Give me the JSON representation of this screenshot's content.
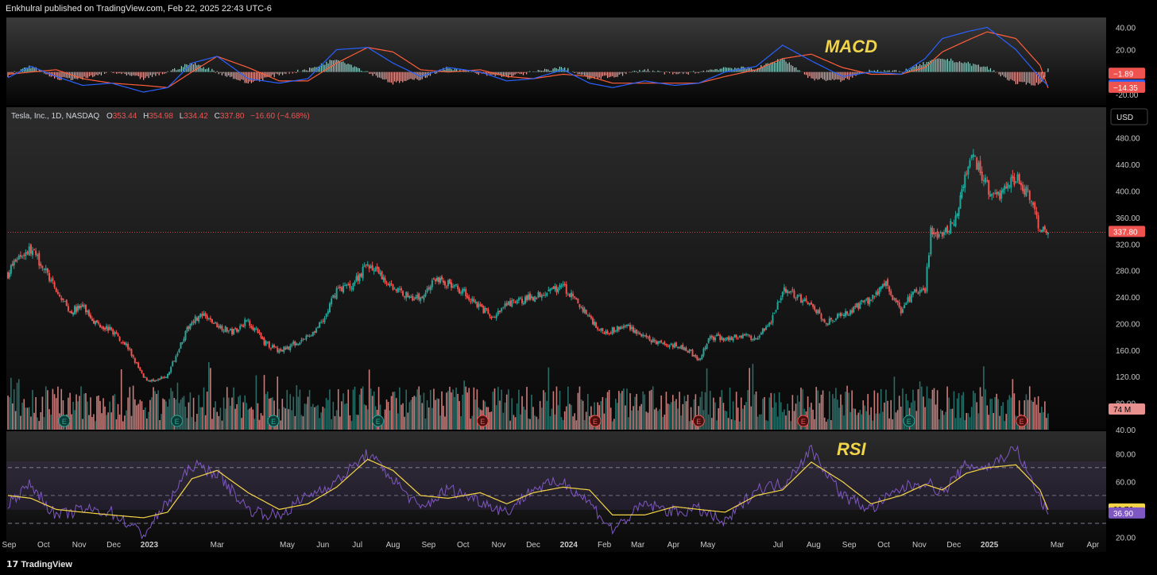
{
  "header": {
    "published": "Enkhulral published on TradingView.com, Feb 22, 2025 22:43 UTC-6"
  },
  "footer": {
    "brand_mark": "17",
    "brand_text": "TradingView"
  },
  "ohlc": {
    "symbol": "Tesla, Inc., 1D, NASDAQ",
    "o_label": "O",
    "o": "353.44",
    "h_label": "H",
    "h": "354.98",
    "l_label": "L",
    "l": "334.42",
    "c_label": "C",
    "c": "337.80",
    "change": "−16.60 (−4.68%)"
  },
  "currency": "USD",
  "macd_title": "MACD",
  "rsi_title": "RSI",
  "earnings_marker": "E",
  "colors": {
    "up": "#26a69a",
    "down": "#ef5350",
    "macd": "#2962ff",
    "signal": "#ff5e3a",
    "rsi": "#7e57c2",
    "rsi_ma": "#f5d547",
    "annotation": "#f0d54a"
  },
  "chart_data": [
    {
      "type": "candlestick",
      "name": "TSLA price",
      "x_axis": [
        "Sep",
        "Oct",
        "Nov",
        "Dec",
        "2023",
        "Mar",
        "May",
        "Jun",
        "Jul",
        "Aug",
        "Sep",
        "Oct",
        "Nov",
        "Dec",
        "2024",
        "Feb",
        "Mar",
        "Apr",
        "May",
        "Jul",
        "Aug",
        "Sep",
        "Oct",
        "Nov",
        "Dec",
        "2025",
        "Mar",
        "Apr"
      ],
      "y_ticks": [
        40,
        80,
        120,
        160,
        200,
        240,
        280,
        320,
        360,
        400,
        440,
        480
      ],
      "ylim": [
        40,
        500
      ],
      "last_price": 337.8,
      "last_price_label": "337.80",
      "x": [
        "2022-08-31",
        "2022-09-08",
        "2022-09-20",
        "2022-09-30",
        "2022-10-12",
        "2022-10-24",
        "2022-11-04",
        "2022-11-15",
        "2022-11-29",
        "2022-12-12",
        "2022-12-27",
        "2023-01-06",
        "2023-01-17",
        "2023-01-27",
        "2023-02-07",
        "2023-02-16",
        "2023-03-01",
        "2023-03-14",
        "2023-03-28",
        "2023-04-11",
        "2023-04-24",
        "2023-05-05",
        "2023-05-19",
        "2023-06-01",
        "2023-06-13",
        "2023-06-26",
        "2023-07-10",
        "2023-07-21",
        "2023-08-01",
        "2023-08-14",
        "2023-08-25",
        "2023-09-07",
        "2023-09-18",
        "2023-10-02",
        "2023-10-16",
        "2023-10-27",
        "2023-11-08",
        "2023-11-20",
        "2023-12-01",
        "2023-12-13",
        "2023-12-27",
        "2024-01-09",
        "2024-01-19",
        "2024-01-29",
        "2024-02-08",
        "2024-02-22",
        "2024-03-07",
        "2024-03-20",
        "2024-04-02",
        "2024-04-15",
        "2024-04-23",
        "2024-05-03",
        "2024-05-16",
        "2024-05-30",
        "2024-06-12",
        "2024-06-25",
        "2024-07-05",
        "2024-07-18",
        "2024-07-30",
        "2024-08-12",
        "2024-08-26",
        "2024-09-09",
        "2024-09-20",
        "2024-10-03",
        "2024-10-16",
        "2024-10-28",
        "2024-11-06",
        "2024-11-11",
        "2024-11-21",
        "2024-12-04",
        "2024-12-12",
        "2024-12-18",
        "2024-12-30",
        "2025-01-10",
        "2025-01-24",
        "2025-02-05",
        "2025-02-14",
        "2025-02-21"
      ],
      "values": [
        275,
        300,
        312,
        288,
        248,
        218,
        226,
        202,
        190,
        168,
        118,
        112,
        122,
        165,
        205,
        212,
        198,
        187,
        205,
        172,
        158,
        168,
        180,
        202,
        252,
        258,
        290,
        272,
        255,
        242,
        238,
        268,
        260,
        248,
        225,
        208,
        228,
        235,
        240,
        250,
        255,
        230,
        210,
        188,
        190,
        197,
        178,
        170,
        168,
        158,
        145,
        180,
        178,
        182,
        178,
        205,
        250,
        242,
        225,
        204,
        212,
        228,
        238,
        258,
        220,
        250,
        252,
        340,
        330,
        365,
        425,
        450,
        405,
        395,
        420,
        390,
        340,
        337.8
      ],
      "volume_ylim": [
        0,
        350
      ],
      "volume_last_label": "74 M"
    },
    {
      "type": "line",
      "name": "MACD",
      "y_ticks": [
        40,
        20,
        0,
        -20
      ],
      "ylim": [
        -28,
        46
      ],
      "x": [
        "2022-08-31",
        "2022-09-20",
        "2022-10-12",
        "2022-11-04",
        "2022-11-29",
        "2022-12-27",
        "2023-01-17",
        "2023-02-07",
        "2023-03-01",
        "2023-03-28",
        "2023-04-24",
        "2023-05-19",
        "2023-06-13",
        "2023-07-10",
        "2023-08-01",
        "2023-08-25",
        "2023-09-18",
        "2023-10-16",
        "2023-11-08",
        "2023-12-01",
        "2023-12-27",
        "2024-01-19",
        "2024-02-08",
        "2024-03-07",
        "2024-04-02",
        "2024-04-23",
        "2024-05-16",
        "2024-06-12",
        "2024-07-05",
        "2024-07-30",
        "2024-08-26",
        "2024-09-20",
        "2024-10-16",
        "2024-11-06",
        "2024-11-21",
        "2024-12-12",
        "2024-12-30",
        "2025-01-24",
        "2025-02-14",
        "2025-02-21"
      ],
      "series": [
        {
          "name": "MACD",
          "values": [
            -5,
            5,
            -4,
            -12,
            -10,
            -18,
            -14,
            8,
            14,
            -6,
            -10,
            -6,
            20,
            22,
            8,
            -4,
            4,
            0,
            -8,
            -6,
            2,
            -10,
            -14,
            -8,
            -12,
            -10,
            0,
            5,
            24,
            10,
            -4,
            0,
            -2,
            12,
            30,
            36,
            40,
            20,
            -5,
            -12.46
          ]
        },
        {
          "name": "Signal",
          "values": [
            -2,
            0,
            2,
            -6,
            -10,
            -12,
            -14,
            0,
            14,
            4,
            -8,
            -8,
            8,
            22,
            18,
            2,
            0,
            2,
            -4,
            -6,
            -2,
            -4,
            -10,
            -10,
            -10,
            -10,
            -4,
            2,
            12,
            16,
            4,
            -2,
            -2,
            4,
            18,
            28,
            36,
            30,
            6,
            -14.35
          ]
        },
        {
          "name": "Histogram",
          "values": [
            -3,
            5,
            -6,
            -6,
            0,
            -6,
            0,
            8,
            0,
            -10,
            -2,
            2,
            12,
            0,
            -10,
            -6,
            4,
            -2,
            -4,
            0,
            4,
            -6,
            -4,
            2,
            -2,
            0,
            4,
            3,
            12,
            -6,
            -8,
            2,
            0,
            8,
            12,
            8,
            4,
            -10,
            -11,
            1.89
          ]
        }
      ],
      "labels": [
        "−1.89",
        "−12.46",
        "−14.35"
      ]
    },
    {
      "type": "line",
      "name": "RSI",
      "y_ticks": [
        80,
        60,
        40,
        20
      ],
      "ylim": [
        10,
        95
      ],
      "levels": [
        70,
        50,
        30
      ],
      "x": [
        "2022-08-31",
        "2022-09-20",
        "2022-10-12",
        "2022-11-04",
        "2022-11-29",
        "2022-12-27",
        "2023-01-17",
        "2023-02-07",
        "2023-03-01",
        "2023-03-28",
        "2023-04-24",
        "2023-05-19",
        "2023-06-13",
        "2023-07-10",
        "2023-08-01",
        "2023-08-25",
        "2023-09-18",
        "2023-10-16",
        "2023-11-08",
        "2023-12-01",
        "2023-12-27",
        "2024-01-19",
        "2024-02-08",
        "2024-03-07",
        "2024-04-02",
        "2024-04-23",
        "2024-05-16",
        "2024-06-12",
        "2024-07-05",
        "2024-07-30",
        "2024-08-26",
        "2024-09-20",
        "2024-10-16",
        "2024-11-06",
        "2024-11-21",
        "2024-12-12",
        "2024-12-30",
        "2025-01-24",
        "2025-02-14",
        "2025-02-21"
      ],
      "series": [
        {
          "name": "RSI",
          "values": [
            45,
            58,
            35,
            40,
            38,
            22,
            45,
            72,
            66,
            40,
            35,
            50,
            60,
            80,
            62,
            40,
            55,
            46,
            38,
            55,
            60,
            45,
            25,
            44,
            38,
            40,
            30,
            55,
            58,
            83,
            50,
            40,
            55,
            60,
            52,
            72,
            70,
            84,
            48,
            36.9
          ]
        },
        {
          "name": "RSI MA",
          "values": [
            50,
            48,
            40,
            38,
            36,
            34,
            38,
            62,
            68,
            52,
            40,
            44,
            56,
            76,
            68,
            50,
            48,
            52,
            44,
            52,
            56,
            54,
            36,
            36,
            42,
            40,
            38,
            50,
            54,
            74,
            60,
            44,
            50,
            58,
            54,
            66,
            70,
            72,
            54,
            39.76
          ]
        }
      ],
      "labels": [
        "39.76",
        "36.90"
      ]
    }
  ]
}
